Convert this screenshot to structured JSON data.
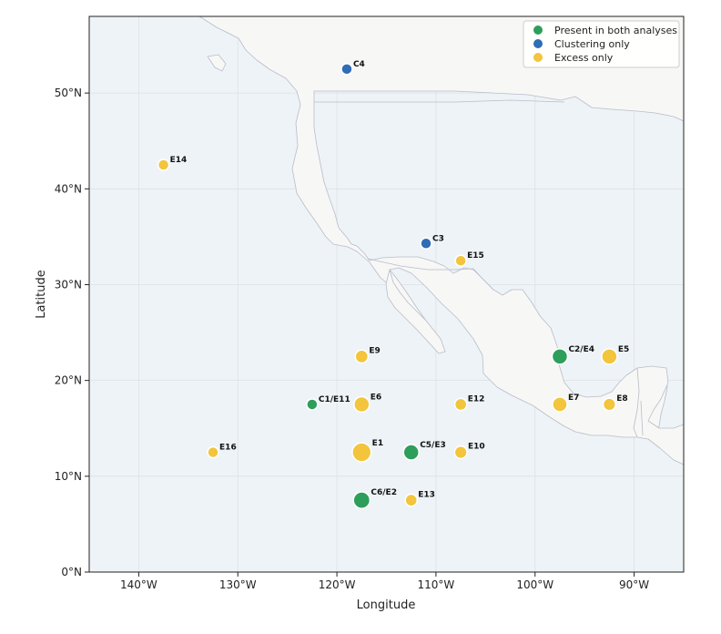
{
  "map": {
    "xlabel": "Longitude",
    "ylabel": "Latitude",
    "lon_range": [
      -145,
      -85
    ],
    "lat_range": [
      0,
      58
    ],
    "x_ticks": [
      {
        "value": -140,
        "label": "140°W"
      },
      {
        "value": -130,
        "label": "130°W"
      },
      {
        "value": -120,
        "label": "120°W"
      },
      {
        "value": -110,
        "label": "110°W"
      },
      {
        "value": -100,
        "label": "100°W"
      },
      {
        "value": -90,
        "label": "90°W"
      }
    ],
    "y_ticks": [
      {
        "value": 0,
        "label": "0°N"
      },
      {
        "value": 10,
        "label": "10°N"
      },
      {
        "value": 20,
        "label": "20°N"
      },
      {
        "value": 30,
        "label": "30°N"
      },
      {
        "value": 40,
        "label": "40°N"
      },
      {
        "value": 50,
        "label": "50°N"
      }
    ],
    "grid": true,
    "colors": {
      "ocean": "#eef3f7",
      "land": "#f7f7f5",
      "border": "#b9bccb",
      "grid": "#dde2e7",
      "both": "#2e9e5b",
      "clustering": "#2f6db5",
      "excess": "#f2c53d"
    },
    "legend": {
      "position": "top-right",
      "entries": [
        {
          "key": "both",
          "label": "Present in both analyses"
        },
        {
          "key": "clustering",
          "label": "Clustering only"
        },
        {
          "key": "excess",
          "label": "Excess only"
        }
      ]
    }
  },
  "chart_data": {
    "type": "scatter",
    "xlabel": "Longitude",
    "ylabel": "Latitude",
    "xlim": [
      -145,
      -85
    ],
    "ylim": [
      0,
      58
    ],
    "grid": true,
    "legend_position": "top-right",
    "series": [
      {
        "name": "Present in both analyses",
        "key": "both",
        "points": [
          {
            "label": "C1/E11",
            "lon": -122.5,
            "lat": 17.5,
            "size": 1
          },
          {
            "label": "C2/E4",
            "lon": -97.5,
            "lat": 22.5,
            "size": 2
          },
          {
            "label": "C5/E3",
            "lon": -112.5,
            "lat": 12.5,
            "size": 2
          },
          {
            "label": "C6/E2",
            "lon": -117.5,
            "lat": 7.5,
            "size": 2.3
          }
        ]
      },
      {
        "name": "Clustering only",
        "key": "clustering",
        "points": [
          {
            "label": "C4",
            "lon": -119,
            "lat": 52.5,
            "size": 1
          },
          {
            "label": "C3",
            "lon": -111,
            "lat": 34.3,
            "size": 1
          }
        ]
      },
      {
        "name": "Excess only",
        "key": "excess",
        "points": [
          {
            "label": "E14",
            "lon": -137.5,
            "lat": 42.5,
            "size": 1
          },
          {
            "label": "E15",
            "lon": -107.5,
            "lat": 32.5,
            "size": 1
          },
          {
            "label": "E9",
            "lon": -117.5,
            "lat": 22.5,
            "size": 1.4
          },
          {
            "label": "E5",
            "lon": -92.5,
            "lat": 22.5,
            "size": 2
          },
          {
            "label": "E6",
            "lon": -117.5,
            "lat": 17.5,
            "size": 2
          },
          {
            "label": "E12",
            "lon": -107.5,
            "lat": 17.5,
            "size": 1.2
          },
          {
            "label": "E7",
            "lon": -97.5,
            "lat": 17.5,
            "size": 1.8
          },
          {
            "label": "E8",
            "lon": -92.5,
            "lat": 17.5,
            "size": 1.3
          },
          {
            "label": "E16",
            "lon": -132.5,
            "lat": 12.5,
            "size": 1
          },
          {
            "label": "E1",
            "lon": -117.5,
            "lat": 12.5,
            "size": 3
          },
          {
            "label": "E10",
            "lon": -107.5,
            "lat": 12.5,
            "size": 1.3
          },
          {
            "label": "E13",
            "lon": -112.5,
            "lat": 7.5,
            "size": 1.2
          }
        ]
      }
    ]
  }
}
